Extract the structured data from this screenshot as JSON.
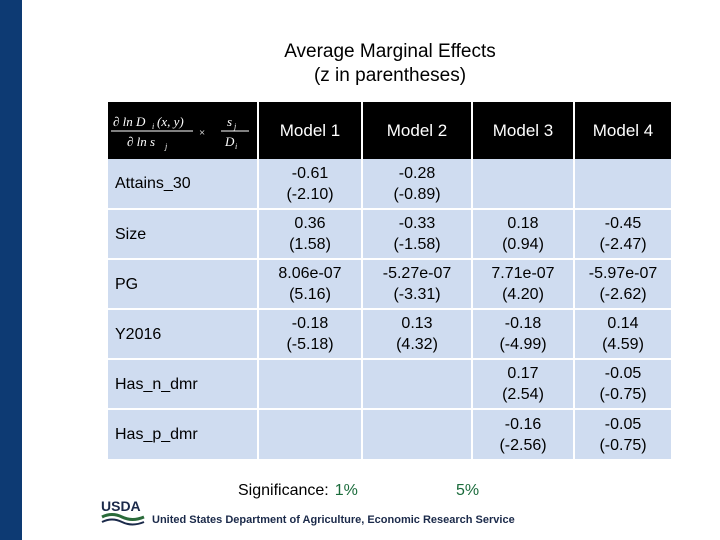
{
  "title": {
    "line1": "Average Marginal Effects",
    "line2": "(z in parentheses)"
  },
  "table": {
    "formula_alt": "∂ln D_i(x,y) / ∂ln s_j × s_j / D_i",
    "formula_parts": {
      "num": "∂ ln D",
      "num_sub": "i",
      "num_args": "(x, y)",
      "den": "∂ ln s",
      "den_sub": "j",
      "times": "×",
      "rnum": "s",
      "rnum_sub": "j",
      "rden": "D",
      "rden_sub": "i"
    },
    "headers": [
      "Model 1",
      "Model 2",
      "Model 3",
      "Model 4"
    ],
    "rows": [
      {
        "label": "Attains_30",
        "cells": [
          [
            "-0.61",
            "(-2.10)"
          ],
          [
            "-0.28",
            "(-0.89)"
          ],
          [
            "",
            ""
          ],
          [
            "",
            ""
          ]
        ]
      },
      {
        "label": "Size",
        "cells": [
          [
            "0.36",
            "(1.58)"
          ],
          [
            "-0.33",
            "(-1.58)"
          ],
          [
            "0.18",
            "(0.94)"
          ],
          [
            "-0.45",
            "(-2.47)"
          ]
        ]
      },
      {
        "label": "PG",
        "cells": [
          [
            "8.06e-07",
            "(5.16)"
          ],
          [
            "-5.27e-07",
            "(-3.31)"
          ],
          [
            "7.71e-07",
            "(4.20)"
          ],
          [
            "-5.97e-07",
            "(-2.62)"
          ]
        ]
      },
      {
        "label": "Y2016",
        "cells": [
          [
            "-0.18",
            "(-5.18)"
          ],
          [
            "0.13",
            "(4.32)"
          ],
          [
            "-0.18",
            "(-4.99)"
          ],
          [
            "0.14",
            "(4.59)"
          ]
        ]
      },
      {
        "label": "Has_n_dmr",
        "cells": [
          [
            "",
            ""
          ],
          [
            "",
            ""
          ],
          [
            "0.17",
            "(2.54)"
          ],
          [
            "-0.05",
            "(-0.75)"
          ]
        ]
      },
      {
        "label": "Has_p_dmr",
        "cells": [
          [
            "",
            ""
          ],
          [
            "",
            ""
          ],
          [
            "-0.16",
            "(-2.56)"
          ],
          [
            "-0.05",
            "(-0.75)"
          ]
        ]
      }
    ]
  },
  "significance": {
    "label": "Significance:",
    "level1": "1%",
    "level2": "5%"
  },
  "footer": {
    "logo_text": "USDA",
    "agency": "United States Department of Agriculture, Economic Research Service"
  },
  "colors": {
    "band": "#0d3a73",
    "header_bg": "#000000",
    "cell_bg": "#cfdcf0",
    "sig_green": "#1a6b3b"
  }
}
